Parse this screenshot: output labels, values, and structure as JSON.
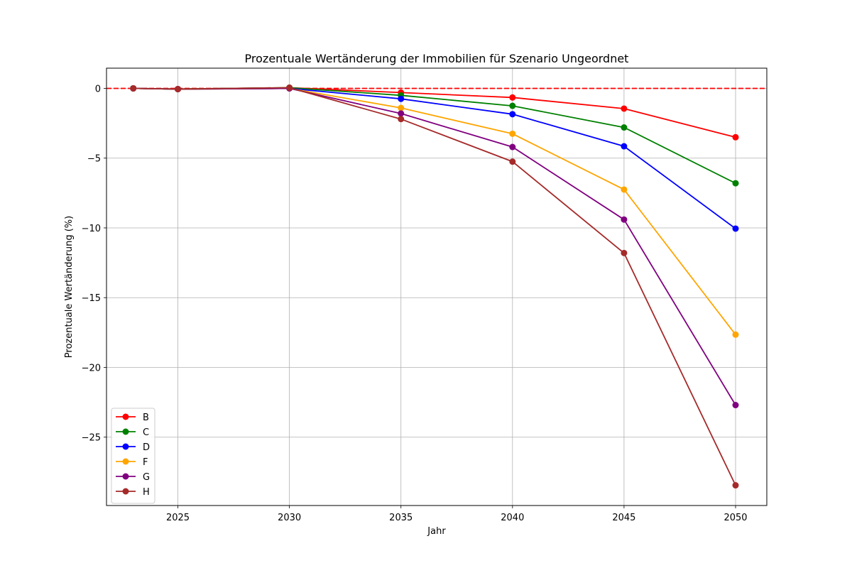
{
  "chart_data": {
    "type": "line",
    "title": "Prozentuale Wertänderung der Immobilien für Szenario Ungeordnet",
    "xlabel": "Jahr",
    "ylabel": "Prozentuale Wertänderung (%)",
    "x": [
      2023,
      2025,
      2030,
      2035,
      2040,
      2045,
      2050
    ],
    "xticks": [
      2025,
      2030,
      2035,
      2040,
      2045,
      2050
    ],
    "yticks": [
      0,
      -5,
      -10,
      -15,
      -20,
      -25
    ],
    "xlim": [
      2021.8,
      2051.4
    ],
    "ylim": [
      -29.9,
      1.45
    ],
    "grid": true,
    "legend_position": "lower left",
    "reference_line": {
      "y": 0,
      "color": "#ff0000",
      "style": "dashed"
    },
    "series": [
      {
        "name": "B",
        "color": "#ff0000",
        "values": [
          0.0,
          -0.05,
          0.05,
          -0.3,
          -0.65,
          -1.45,
          -3.5
        ]
      },
      {
        "name": "C",
        "color": "#008000",
        "values": [
          0.0,
          -0.05,
          0.05,
          -0.5,
          -1.25,
          -2.8,
          -6.8
        ]
      },
      {
        "name": "D",
        "color": "#0000ff",
        "values": [
          0.0,
          -0.05,
          0.0,
          -0.75,
          -1.85,
          -4.15,
          -10.05
        ]
      },
      {
        "name": "F",
        "color": "#ffa500",
        "values": [
          0.0,
          -0.05,
          0.0,
          -1.4,
          -3.25,
          -7.25,
          -17.65
        ]
      },
      {
        "name": "G",
        "color": "#800080",
        "values": [
          0.0,
          -0.05,
          0.0,
          -1.8,
          -4.2,
          -9.4,
          -22.7
        ]
      },
      {
        "name": "H",
        "color": "#a52a2a",
        "values": [
          0.0,
          -0.05,
          0.05,
          -2.2,
          -5.25,
          -11.8,
          -28.45
        ]
      }
    ]
  }
}
